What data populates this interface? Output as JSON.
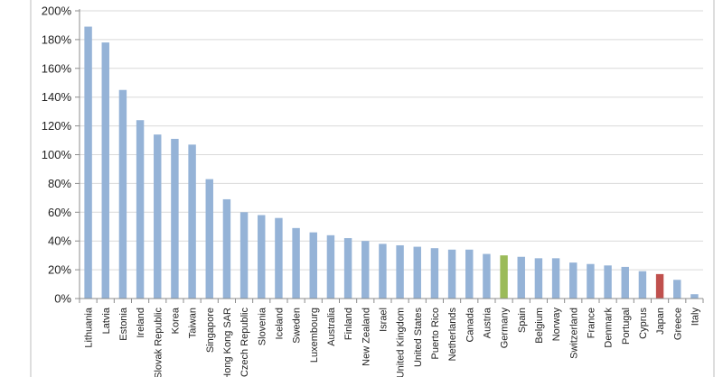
{
  "chart_data": {
    "type": "bar",
    "title": "",
    "xlabel": "",
    "ylabel": "",
    "ylim": [
      0,
      200
    ],
    "y_tick_labels": [
      "0%",
      "20%",
      "40%",
      "60%",
      "80%",
      "100%",
      "120%",
      "140%",
      "160%",
      "180%",
      "200%"
    ],
    "grid": true,
    "default_color": "#95b3d7",
    "categories": [
      "Lithuania",
      "Latvia",
      "Estonia",
      "Ireland",
      "Slovak Republic",
      "Korea",
      "Taiwan",
      "Singapore",
      "Hong Kong SAR",
      "Czech Republic",
      "Slovenia",
      "Iceland",
      "Sweden",
      "Luxembourg",
      "Australia",
      "Finland",
      "New Zealand",
      "Israel",
      "United Kingdom",
      "United States",
      "Puerto Rico",
      "Netherlands",
      "Canada",
      "Austria",
      "Germany",
      "Spain",
      "Belgium",
      "Norway",
      "Switzerland",
      "France",
      "Denmark",
      "Portugal",
      "Cyprus",
      "Japan",
      "Greece",
      "Italy"
    ],
    "values": [
      189,
      178,
      145,
      124,
      114,
      111,
      107,
      83,
      69,
      60,
      58,
      56,
      49,
      46,
      44,
      42,
      40,
      38,
      37,
      36,
      35,
      34,
      34,
      31,
      30,
      29,
      28,
      28,
      25,
      24,
      23,
      22,
      19,
      17,
      13,
      3
    ],
    "highlights": [
      {
        "category": "Germany",
        "color": "#9bbb59"
      },
      {
        "category": "Japan",
        "color": "#c0504d"
      }
    ]
  }
}
